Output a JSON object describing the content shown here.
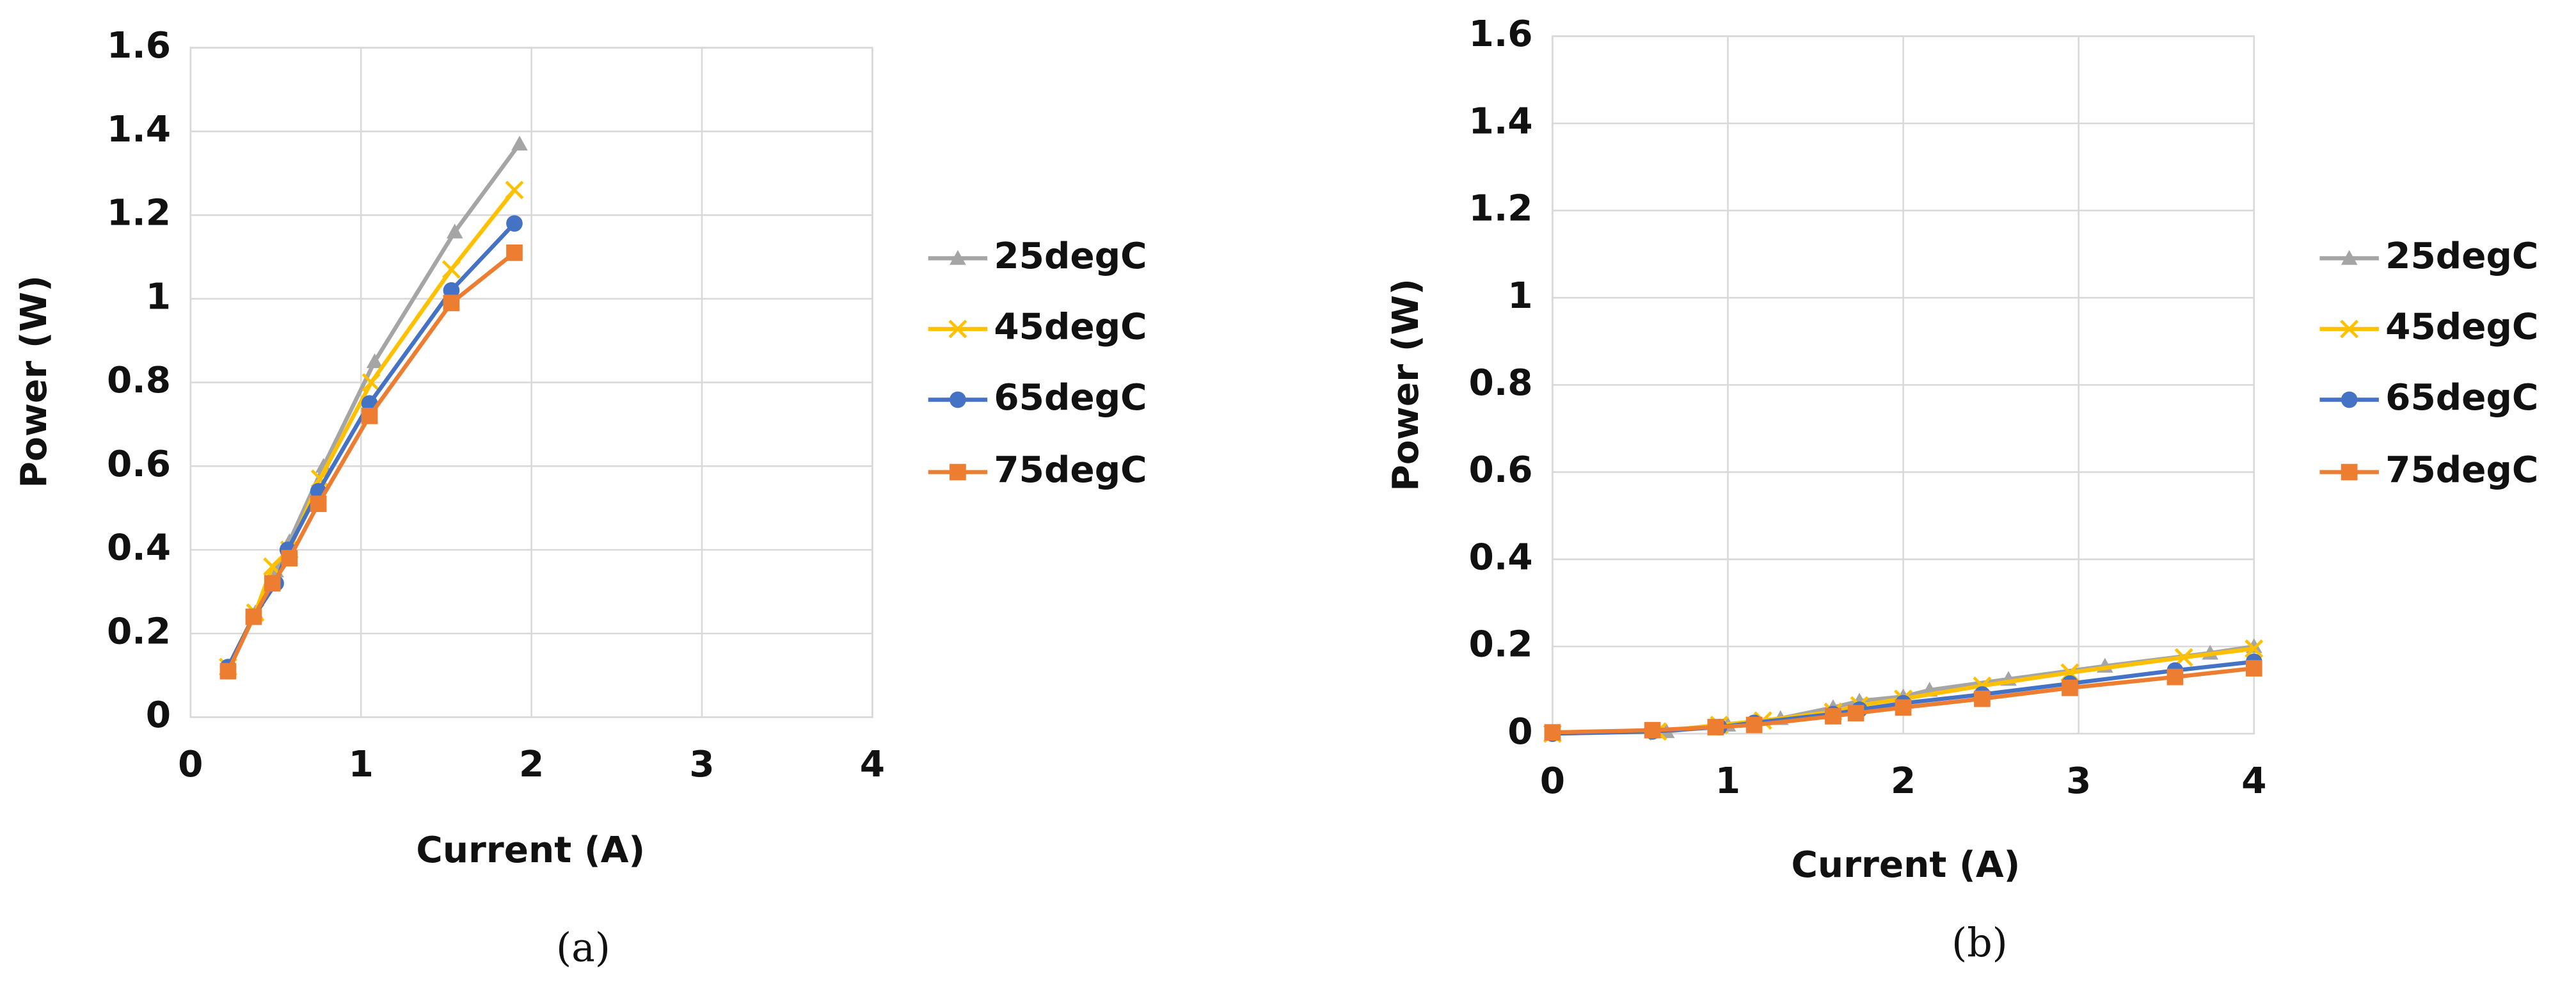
{
  "chart_data": [
    {
      "type": "line",
      "caption": "(a)",
      "x_label": "Current (A)",
      "y_label": "Power (W)",
      "xlim": [
        0,
        4
      ],
      "xticks": [
        0,
        1,
        2,
        3,
        4
      ],
      "ylim": [
        0,
        1.6
      ],
      "yticks": [
        0,
        0.2,
        0.4,
        0.6,
        0.8,
        1,
        1.2,
        1.4,
        1.6
      ],
      "grid": true,
      "series": [
        {
          "name": "25degC",
          "color": "#a5a5a5",
          "marker": "triangle",
          "x": [
            0.22,
            0.38,
            0.5,
            0.58,
            0.78,
            1.08,
            1.55,
            1.93
          ],
          "values": [
            0.12,
            0.25,
            0.35,
            0.42,
            0.6,
            0.85,
            1.16,
            1.37
          ]
        },
        {
          "name": "45degC",
          "color": "#ffc000",
          "marker": "x",
          "x": [
            0.22,
            0.38,
            0.48,
            0.58,
            0.76,
            1.06,
            1.53,
            1.9
          ],
          "values": [
            0.12,
            0.25,
            0.36,
            0.4,
            0.57,
            0.8,
            1.07,
            1.26
          ]
        },
        {
          "name": "65degC",
          "color": "#4472c4",
          "marker": "circle",
          "x": [
            0.22,
            0.37,
            0.5,
            0.57,
            0.75,
            1.05,
            1.53,
            1.9
          ],
          "values": [
            0.12,
            0.24,
            0.32,
            0.4,
            0.54,
            0.75,
            1.02,
            1.18
          ]
        },
        {
          "name": "75degC",
          "color": "#ed7d31",
          "marker": "square",
          "x": [
            0.22,
            0.37,
            0.48,
            0.58,
            0.75,
            1.05,
            1.53,
            1.9
          ],
          "values": [
            0.11,
            0.24,
            0.32,
            0.38,
            0.51,
            0.72,
            0.99,
            1.11
          ]
        }
      ]
    },
    {
      "type": "line",
      "caption": "(b)",
      "x_label": "Current (A)",
      "y_label": "Power (W)",
      "xlim": [
        0,
        4
      ],
      "xticks": [
        0,
        1,
        2,
        3,
        4
      ],
      "ylim": [
        0,
        1.6
      ],
      "yticks": [
        0,
        0.2,
        0.4,
        0.6,
        0.8,
        1,
        1.2,
        1.4,
        1.6
      ],
      "grid": true,
      "series": [
        {
          "name": "25degC",
          "color": "#a5a5a5",
          "marker": "triangle",
          "x": [
            0,
            0.65,
            1.0,
            1.3,
            1.6,
            1.75,
            2.0,
            2.15,
            2.6,
            3.15,
            3.75,
            4.0
          ],
          "values": [
            0,
            0.005,
            0.02,
            0.035,
            0.06,
            0.075,
            0.085,
            0.1,
            0.125,
            0.155,
            0.185,
            0.2
          ]
        },
        {
          "name": "45degC",
          "color": "#ffc000",
          "marker": "x",
          "x": [
            0,
            0.6,
            0.95,
            1.2,
            1.6,
            1.75,
            2.0,
            2.45,
            2.95,
            3.6,
            4.0
          ],
          "values": [
            0,
            0.005,
            0.02,
            0.03,
            0.05,
            0.065,
            0.08,
            0.11,
            0.14,
            0.175,
            0.195
          ]
        },
        {
          "name": "65degC",
          "color": "#4472c4",
          "marker": "circle",
          "x": [
            0,
            0.57,
            0.95,
            1.15,
            1.6,
            1.75,
            2.0,
            2.45,
            2.95,
            3.55,
            4.0
          ],
          "values": [
            0,
            0.005,
            0.015,
            0.025,
            0.045,
            0.055,
            0.07,
            0.09,
            0.115,
            0.145,
            0.165
          ]
        },
        {
          "name": "75degC",
          "color": "#ed7d31",
          "marker": "square",
          "x": [
            0,
            0.57,
            0.93,
            1.15,
            1.6,
            1.73,
            2.0,
            2.45,
            2.95,
            3.55,
            4.0
          ],
          "values": [
            0.003,
            0.008,
            0.015,
            0.02,
            0.04,
            0.047,
            0.06,
            0.08,
            0.105,
            0.13,
            0.15
          ]
        }
      ]
    }
  ]
}
